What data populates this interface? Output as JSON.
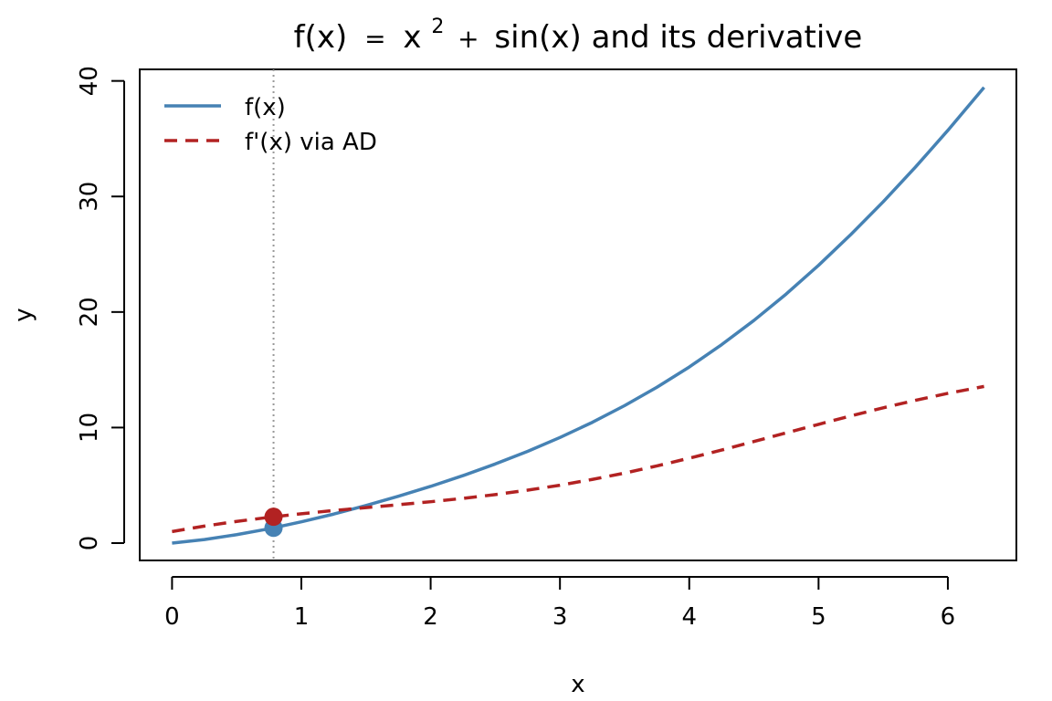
{
  "chart_data": {
    "type": "line",
    "title": {
      "main": "f(x)",
      "eq": "=",
      "base": "x",
      "sup": "2",
      "plus": "+",
      "tail": "sin(x) and its derivative"
    },
    "xlabel": "x",
    "ylabel": "y",
    "xlim": [
      -0.25,
      6.53
    ],
    "ylim": [
      -1.5,
      41.0
    ],
    "xticks": [
      0,
      1,
      2,
      3,
      4,
      5,
      6
    ],
    "yticks": [
      0,
      10,
      20,
      30,
      40
    ],
    "grid": false,
    "legend_position": "top-left",
    "vline_x": 0.785,
    "series": [
      {
        "name": "f(x)",
        "color": "#4682B4",
        "style": "solid",
        "x": [
          0,
          0.25,
          0.5,
          0.75,
          1,
          1.25,
          1.5,
          1.75,
          2,
          2.25,
          2.5,
          2.75,
          3,
          3.25,
          3.5,
          3.75,
          4,
          4.25,
          4.5,
          4.75,
          5,
          5.25,
          5.5,
          5.75,
          6,
          6.28
        ],
        "y": [
          0,
          0.31,
          0.73,
          1.24,
          1.84,
          2.51,
          3.25,
          4.05,
          4.91,
          5.84,
          6.85,
          7.94,
          9.14,
          10.45,
          11.9,
          13.49,
          15.24,
          17.17,
          19.27,
          21.56,
          24.04,
          26.71,
          29.54,
          32.55,
          35.72,
          39.44
        ]
      },
      {
        "name": "f'(x) via AD",
        "color": "#B22222",
        "style": "dashed",
        "x": [
          0,
          0.25,
          0.5,
          0.75,
          1,
          1.25,
          1.5,
          1.75,
          2,
          2.25,
          2.5,
          2.75,
          3,
          3.25,
          3.5,
          3.75,
          4,
          4.25,
          4.5,
          4.75,
          5,
          5.25,
          5.5,
          5.75,
          6,
          6.28
        ],
        "y": [
          1.0,
          1.47,
          1.88,
          2.23,
          2.54,
          2.82,
          3.07,
          3.32,
          3.58,
          3.87,
          4.2,
          4.58,
          5.01,
          5.51,
          6.06,
          6.68,
          7.35,
          8.05,
          8.79,
          9.54,
          10.28,
          11.01,
          11.71,
          12.36,
          12.96,
          13.56
        ]
      }
    ],
    "points": [
      {
        "x": 0.785,
        "y": 1.32,
        "color": "#4682B4"
      },
      {
        "x": 0.785,
        "y": 2.28,
        "color": "#B22222"
      }
    ]
  }
}
